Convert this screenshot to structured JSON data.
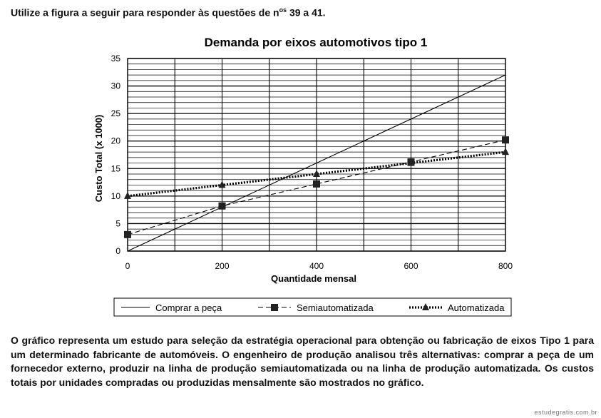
{
  "header": {
    "prefix": "Utilize a figura a seguir para responder às questões de n",
    "sup": "os",
    "suffix": " 39 a 41."
  },
  "chart_data": {
    "type": "line",
    "title": "Demanda por eixos automotivos tipo 1",
    "xlabel": "Quantidade mensal",
    "ylabel": "Custo Total (x 1000)",
    "xlim": [
      0,
      800
    ],
    "ylim": [
      0,
      35
    ],
    "xticks": [
      0,
      200,
      400,
      600,
      800
    ],
    "yticks": [
      0,
      5,
      10,
      15,
      20,
      25,
      30,
      35
    ],
    "grid": true,
    "legend_position": "bottom",
    "series": [
      {
        "name": "Comprar a peça",
        "style": "solid",
        "marker": "none",
        "x": [
          0,
          800
        ],
        "y": [
          0,
          32
        ]
      },
      {
        "name": "Semiautomatizada",
        "style": "dashed",
        "marker": "square",
        "x": [
          0,
          200,
          400,
          600,
          800
        ],
        "y": [
          3,
          8.2,
          12.2,
          16.2,
          20.2
        ]
      },
      {
        "name": "Automatizada",
        "style": "dotted",
        "marker": "triangle",
        "x": [
          0,
          200,
          400,
          600,
          800
        ],
        "y": [
          10,
          12,
          14,
          16,
          18
        ]
      }
    ]
  },
  "paragraph": "O gráfico representa um estudo para seleção da estratégia operacional para obtenção ou fabricação de eixos Tipo 1 para um determinado fabricante de automóveis. O engenheiro de produção analisou três alternativas: comprar a peça de um fornecedor externo, produzir na linha de produção semiautomatizada ou na linha de produção automatizada. Os custos totais por unidades compradas ou produzidas mensalmente são mostrados no gráfico.",
  "watermark": "estudegratis.com.br"
}
